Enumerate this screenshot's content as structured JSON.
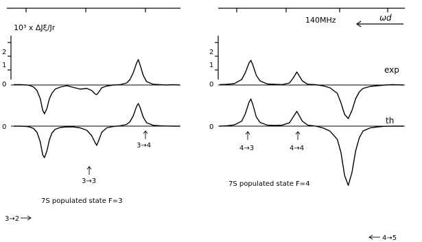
{
  "chart_data": [
    {
      "type": "line",
      "panel": "left",
      "ylabel": "10³ x ΔJξ/Jr",
      "yticks": [
        "0",
        "1",
        "2"
      ],
      "baseline_label": "0",
      "caption": "7S populated state F=3",
      "x": [
        0.0,
        0.04,
        0.08,
        0.1,
        0.12,
        0.14,
        0.16,
        0.175,
        0.185,
        0.2,
        0.215,
        0.23,
        0.25,
        0.28,
        0.32,
        0.36,
        0.4,
        0.44,
        0.47,
        0.49,
        0.5,
        0.51,
        0.53,
        0.56,
        0.6,
        0.64,
        0.68,
        0.7,
        0.72,
        0.74,
        0.75,
        0.76,
        0.78,
        0.8,
        0.84,
        0.88,
        0.92,
        0.96,
        1.0
      ],
      "series": [
        {
          "name": "exp",
          "values": [
            0.05,
            0.05,
            0.0,
            -0.1,
            -0.3,
            -0.8,
            -2.0,
            -3.7,
            -4.2,
            -3.4,
            -2.0,
            -1.2,
            -0.6,
            -0.3,
            -0.1,
            -0.35,
            -0.6,
            -0.5,
            -0.8,
            -1.3,
            -1.4,
            -1.1,
            -0.4,
            -0.15,
            0.0,
            0.05,
            0.3,
            0.8,
            1.8,
            3.2,
            3.7,
            3.0,
            1.4,
            0.5,
            0.1,
            0.05,
            0.0,
            0.05,
            0.0
          ]
        },
        {
          "name": "th",
          "values": [
            0.0,
            0.0,
            -0.05,
            -0.15,
            -0.35,
            -0.9,
            -2.3,
            -4.2,
            -4.6,
            -3.6,
            -2.0,
            -1.0,
            -0.45,
            -0.2,
            -0.1,
            -0.12,
            -0.25,
            -0.6,
            -1.4,
            -2.4,
            -2.8,
            -2.2,
            -0.9,
            -0.25,
            -0.05,
            0.05,
            0.25,
            0.65,
            1.5,
            2.9,
            3.3,
            2.8,
            1.3,
            0.5,
            0.12,
            0.05,
            0.02,
            0.0,
            0.0
          ]
        }
      ],
      "annotations": [
        "3→2",
        "3→3",
        "3→4"
      ]
    },
    {
      "type": "line",
      "panel": "right",
      "scale_label": "140MHz",
      "direction_label": "ωd",
      "yticks": [
        "0",
        "1",
        "2"
      ],
      "baseline_label": "0",
      "caption": "7S populated state F=4",
      "x": [
        0.0,
        0.04,
        0.08,
        0.12,
        0.14,
        0.16,
        0.17,
        0.18,
        0.2,
        0.22,
        0.26,
        0.3,
        0.34,
        0.38,
        0.4,
        0.42,
        0.45,
        0.48,
        0.52,
        0.56,
        0.6,
        0.64,
        0.66,
        0.68,
        0.7,
        0.72,
        0.74,
        0.76,
        0.78,
        0.82,
        0.86,
        0.9,
        0.94,
        1.0
      ],
      "series": [
        {
          "name": "exp",
          "values": [
            0.05,
            0.1,
            0.2,
            0.8,
            1.8,
            3.2,
            3.6,
            3.0,
            1.4,
            0.6,
            0.15,
            0.1,
            0.05,
            0.3,
            1.0,
            1.9,
            0.6,
            0.1,
            0.05,
            -0.1,
            -0.4,
            -1.2,
            -2.6,
            -4.3,
            -4.9,
            -3.7,
            -2.0,
            -1.0,
            -0.5,
            -0.2,
            -0.1,
            0.0,
            0.05,
            0.0
          ]
        },
        {
          "name": "th",
          "values": [
            0.0,
            0.05,
            0.15,
            0.6,
            1.5,
            2.9,
            3.3,
            2.7,
            1.1,
            0.45,
            0.12,
            0.08,
            0.12,
            0.4,
            1.1,
            1.8,
            0.6,
            0.12,
            0.02,
            -0.2,
            -0.6,
            -1.6,
            -3.2,
            -6.0,
            -7.2,
            -5.6,
            -3.0,
            -1.4,
            -0.6,
            -0.2,
            -0.08,
            -0.02,
            0.0,
            0.0
          ]
        }
      ],
      "annotations": [
        "4→3",
        "4→4",
        "4→5"
      ],
      "series_labels": [
        "exp",
        "th"
      ]
    }
  ]
}
